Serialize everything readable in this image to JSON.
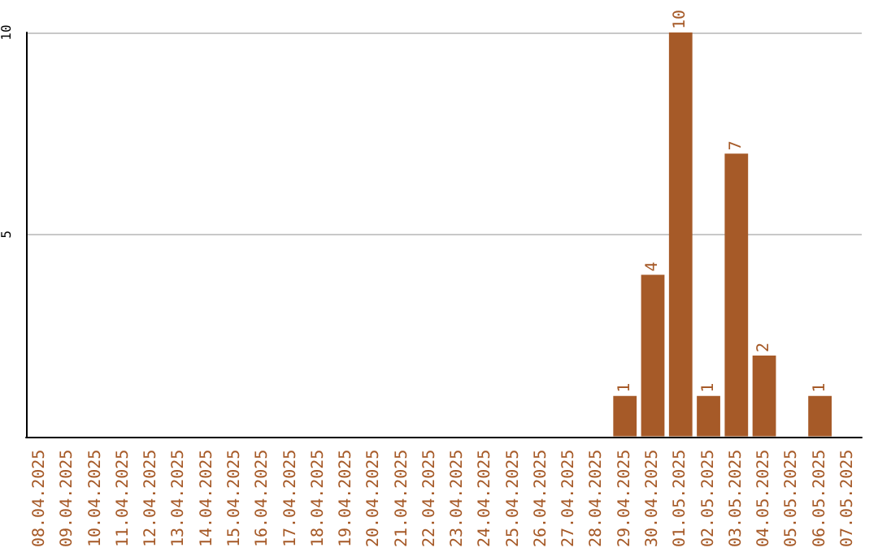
{
  "chart_data": {
    "type": "bar",
    "categories": [
      "08.04.2025",
      "09.04.2025",
      "10.04.2025",
      "11.04.2025",
      "12.04.2025",
      "13.04.2025",
      "14.04.2025",
      "15.04.2025",
      "16.04.2025",
      "17.04.2025",
      "18.04.2025",
      "19.04.2025",
      "20.04.2025",
      "21.04.2025",
      "22.04.2025",
      "23.04.2025",
      "24.04.2025",
      "25.04.2025",
      "26.04.2025",
      "27.04.2025",
      "28.04.2025",
      "29.04.2025",
      "30.04.2025",
      "01.05.2025",
      "02.05.2025",
      "03.05.2025",
      "04.05.2025",
      "05.05.2025",
      "06.05.2025",
      "07.05.2025"
    ],
    "values": [
      0,
      0,
      0,
      0,
      0,
      0,
      0,
      0,
      0,
      0,
      0,
      0,
      0,
      0,
      0,
      0,
      0,
      0,
      0,
      0,
      0,
      1,
      4,
      10,
      1,
      7,
      2,
      0,
      1,
      0
    ],
    "value_labels": [
      null,
      null,
      null,
      null,
      null,
      null,
      null,
      null,
      null,
      null,
      null,
      null,
      null,
      null,
      null,
      null,
      null,
      null,
      null,
      null,
      null,
      "1",
      "4",
      "10",
      "1",
      "7",
      "2",
      null,
      "1",
      null
    ],
    "color": "#a65a28",
    "ylim": [
      0,
      10
    ],
    "yticks": [
      5,
      10
    ],
    "grid": "y"
  }
}
